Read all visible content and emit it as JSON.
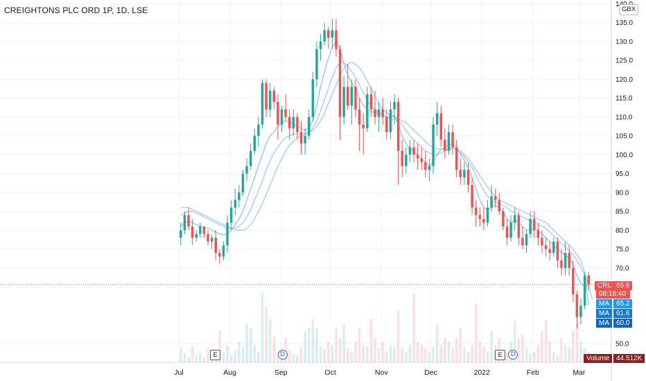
{
  "header": {
    "title": "CREIGHTONS PLC ORD 1P, 1D, LSE",
    "currency": "GBX"
  },
  "price_axis": {
    "ticks": [
      "140.0",
      "135.0",
      "130.0",
      "125.0",
      "120.0",
      "115.0",
      "110.0",
      "105.0",
      "100.0",
      "95.0",
      "90.0",
      "85.0",
      "80.0",
      "75.0",
      "70.0",
      "50.0"
    ]
  },
  "time_axis": {
    "labels": [
      "Jul",
      "Aug",
      "Sep",
      "Oct",
      "Nov",
      "Dec",
      "2022",
      "Feb",
      "Mar"
    ]
  },
  "legend_tags": {
    "symbol": "CRL",
    "last_price": "65.6",
    "countdown": "08:16:40",
    "ma_label": "MA",
    "ma1": "65.2",
    "ma2": "61.6",
    "ma3": "60.0",
    "volume_label": "Volume",
    "volume_value": "44.512K"
  },
  "events": [
    {
      "type": "E",
      "date": "2021-07-23"
    },
    {
      "type": "D",
      "date": "2021-09-02"
    },
    {
      "type": "E",
      "date": "2022-01-12"
    },
    {
      "type": "D",
      "date": "2022-01-20"
    }
  ],
  "colors": {
    "up": "#26a69a",
    "down": "#ef5350",
    "ma": "#8fc3e8",
    "price_line": "#ef5350",
    "ma_tag": "#2196f3"
  },
  "chart_data": {
    "type": "candlestick",
    "title": "CREIGHTONS PLC ORD 1P, 1D, LSE",
    "ylim": [
      45,
      141
    ],
    "x_range": [
      "2021-07-01",
      "2022-03-08"
    ],
    "last_price": 65.6,
    "series": [
      {
        "name": "CRL",
        "values": [
          [
            78,
            82,
            76,
            80
          ],
          [
            80,
            85,
            79,
            84
          ],
          [
            84,
            86,
            80,
            81
          ],
          [
            81,
            83,
            76,
            78
          ],
          [
            78,
            80,
            77,
            79
          ],
          [
            79,
            82,
            78,
            81
          ],
          [
            81,
            81,
            78,
            79
          ],
          [
            79,
            80,
            76,
            77
          ],
          [
            77,
            79,
            75,
            78
          ],
          [
            78,
            80,
            72,
            74
          ],
          [
            74,
            75,
            71,
            73
          ],
          [
            73,
            77,
            72,
            76
          ],
          [
            76,
            84,
            74,
            82
          ],
          [
            82,
            88,
            80,
            86
          ],
          [
            86,
            91,
            84,
            88
          ],
          [
            88,
            92,
            86,
            90
          ],
          [
            90,
            96,
            89,
            95
          ],
          [
            95,
            99,
            93,
            97
          ],
          [
            97,
            103,
            96,
            101
          ],
          [
            101,
            107,
            100,
            105
          ],
          [
            105,
            110,
            102,
            108
          ],
          [
            108,
            120,
            107,
            119
          ],
          [
            119,
            120,
            110,
            112
          ],
          [
            112,
            119,
            110,
            117
          ],
          [
            117,
            118,
            112,
            114
          ],
          [
            114,
            116,
            104,
            108
          ],
          [
            108,
            113,
            106,
            112
          ],
          [
            112,
            116,
            109,
            110
          ],
          [
            110,
            112,
            104,
            107
          ],
          [
            107,
            112,
            105,
            110
          ],
          [
            110,
            111,
            104,
            106
          ],
          [
            106,
            109,
            100,
            103
          ],
          [
            103,
            107,
            100,
            105
          ],
          [
            105,
            112,
            104,
            110
          ],
          [
            110,
            122,
            109,
            120
          ],
          [
            120,
            130,
            118,
            128
          ],
          [
            128,
            132,
            125,
            130
          ],
          [
            130,
            135,
            129,
            133
          ],
          [
            133,
            134,
            128,
            131
          ],
          [
            131,
            136,
            128,
            133
          ],
          [
            133,
            136,
            126,
            128
          ],
          [
            128,
            129,
            104,
            110
          ],
          [
            110,
            121,
            108,
            118
          ],
          [
            118,
            124,
            112,
            113
          ],
          [
            113,
            120,
            108,
            118
          ],
          [
            118,
            120,
            110,
            112
          ],
          [
            112,
            115,
            101,
            108
          ],
          [
            108,
            111,
            100,
            107
          ],
          [
            107,
            118,
            106,
            116
          ],
          [
            116,
            118,
            110,
            112
          ],
          [
            112,
            117,
            108,
            110
          ],
          [
            110,
            114,
            106,
            112
          ],
          [
            112,
            115,
            108,
            110
          ],
          [
            110,
            112,
            104,
            106
          ],
          [
            106,
            114,
            104,
            112
          ],
          [
            112,
            116,
            108,
            114
          ],
          [
            114,
            115,
            92,
            101
          ],
          [
            101,
            104,
            94,
            97
          ],
          [
            97,
            102,
            95,
            100
          ],
          [
            100,
            104,
            98,
            102
          ],
          [
            102,
            104,
            98,
            100
          ],
          [
            100,
            103,
            96,
            99
          ],
          [
            99,
            102,
            96,
            98
          ],
          [
            98,
            101,
            94,
            96
          ],
          [
            96,
            99,
            93,
            97
          ],
          [
            97,
            110,
            95,
            108
          ],
          [
            108,
            114,
            105,
            111
          ],
          [
            111,
            113,
            102,
            104
          ],
          [
            104,
            107,
            99,
            101
          ],
          [
            101,
            108,
            100,
            106
          ],
          [
            106,
            108,
            100,
            102
          ],
          [
            102,
            104,
            94,
            96
          ],
          [
            96,
            99,
            92,
            94
          ],
          [
            94,
            98,
            92,
            96
          ],
          [
            96,
            98,
            90,
            92
          ],
          [
            92,
            94,
            84,
            86
          ],
          [
            86,
            88,
            81,
            84
          ],
          [
            84,
            86,
            81,
            83
          ],
          [
            83,
            86,
            80,
            82
          ],
          [
            82,
            88,
            81,
            86
          ],
          [
            86,
            92,
            85,
            89
          ],
          [
            89,
            91,
            86,
            88
          ],
          [
            88,
            90,
            84,
            85
          ],
          [
            85,
            86,
            80,
            81
          ],
          [
            81,
            83,
            76,
            78
          ],
          [
            78,
            84,
            77,
            82
          ],
          [
            82,
            86,
            80,
            84
          ],
          [
            84,
            85,
            76,
            78
          ],
          [
            78,
            81,
            75,
            76
          ],
          [
            76,
            80,
            74,
            79
          ],
          [
            79,
            85,
            78,
            83
          ],
          [
            83,
            85,
            78,
            80
          ],
          [
            80,
            82,
            76,
            78
          ],
          [
            78,
            80,
            74,
            76
          ],
          [
            76,
            78,
            73,
            75
          ],
          [
            75,
            77,
            72,
            74
          ],
          [
            74,
            78,
            73,
            77
          ],
          [
            77,
            78,
            70,
            72
          ],
          [
            72,
            75,
            68,
            70
          ],
          [
            70,
            77,
            68,
            74
          ],
          [
            74,
            76,
            68,
            70
          ],
          [
            70,
            72,
            61,
            63
          ],
          [
            63,
            64,
            54,
            57
          ],
          [
            57,
            62,
            55,
            60
          ],
          [
            60,
            69,
            59,
            68
          ],
          [
            68,
            69,
            64,
            65.6
          ]
        ]
      },
      {
        "name": "MA",
        "values": [
          81,
          82,
          82.5,
          82,
          81.5,
          81,
          80.8,
          80.5,
          80,
          79.5,
          79,
          78.8,
          79,
          80,
          81.5,
          83,
          85,
          88,
          91,
          94,
          97,
          100,
          103,
          105,
          106,
          107.5,
          108.5,
          109,
          108.5,
          108,
          107.5,
          107,
          106.5,
          107,
          109,
          113,
          118,
          122,
          125.5,
          128.5,
          130,
          128,
          124,
          121,
          119,
          117.5,
          115,
          113,
          112,
          111.5,
          111,
          111,
          110.5,
          110,
          110,
          110.5,
          108,
          105,
          103,
          101.5,
          101,
          100,
          99,
          98,
          97,
          98,
          100,
          101.5,
          102,
          102.5,
          103,
          102,
          100,
          98.5,
          96.5,
          94,
          91,
          88,
          86,
          85.5,
          86,
          86.5,
          86,
          85,
          83,
          82,
          82.5,
          82,
          81,
          80,
          80,
          80.5,
          80,
          79,
          78,
          77,
          76,
          75,
          74,
          73.5,
          72.5,
          71,
          68,
          66,
          65,
          65.2
        ]
      },
      {
        "name": "MA",
        "values": [
          84,
          84.5,
          85,
          85,
          84.5,
          84,
          83.5,
          83,
          82.5,
          82,
          81.5,
          81,
          80.5,
          80.5,
          80.5,
          81,
          82,
          83.5,
          85.5,
          88,
          90.5,
          93,
          96,
          98.5,
          100.5,
          102,
          103.5,
          104.5,
          105,
          105.5,
          105.5,
          105.5,
          105.5,
          106,
          107,
          109,
          111.5,
          114.5,
          117.5,
          120.5,
          123,
          124.5,
          124.5,
          123.5,
          122,
          120.5,
          118.5,
          116.5,
          114.5,
          113,
          112,
          111,
          110.5,
          110,
          109.5,
          109.5,
          109,
          108,
          106.5,
          105,
          104,
          103,
          102,
          101,
          100.5,
          100,
          100,
          100.5,
          101,
          101.5,
          102,
          101.5,
          100.5,
          99.5,
          98,
          96.5,
          94.5,
          92.5,
          90.5,
          89,
          88,
          87.5,
          87,
          86.5,
          86,
          85,
          84.5,
          84,
          83.5,
          83,
          82.5,
          82,
          81.5,
          81,
          80.5,
          79.5,
          78.5,
          77.5,
          76.5,
          75.5,
          74.5,
          73.5,
          72,
          70,
          68,
          65.5,
          61.6
        ]
      },
      {
        "name": "MA",
        "values": [
          86,
          86,
          86,
          85.5,
          85,
          84.5,
          84,
          83.5,
          83,
          82.5,
          82,
          81.5,
          81,
          80.5,
          80,
          80,
          80,
          80.5,
          81.5,
          83,
          85,
          87,
          89.5,
          92,
          94.5,
          97,
          99,
          101,
          102.5,
          103.5,
          104.5,
          105,
          105.5,
          106,
          106.5,
          107.5,
          109,
          111,
          113.5,
          116,
          118.5,
          121,
          123,
          124,
          124.5,
          124,
          123,
          121.5,
          119.5,
          117.5,
          115.5,
          113.5,
          112,
          111,
          110.5,
          110,
          109.5,
          109,
          108.5,
          107.5,
          106.5,
          105.5,
          104.5,
          103.5,
          102.5,
          102,
          101.5,
          101.5,
          101.5,
          101.5,
          101.5,
          101.5,
          101,
          100,
          99,
          97.5,
          96,
          94.5,
          93,
          91.5,
          90,
          89,
          88,
          87.5,
          87,
          86.5,
          86,
          85.5,
          85,
          84.5,
          84,
          83.5,
          83,
          82.5,
          82,
          81,
          80,
          79,
          78,
          77,
          76,
          75,
          73.5,
          72,
          68.5,
          60
        ]
      },
      {
        "name": "Volume",
        "values": [
          8,
          5,
          3,
          9,
          4,
          6,
          3,
          8,
          5,
          6,
          18,
          6,
          10,
          4,
          7,
          12,
          9,
          22,
          20,
          10,
          6,
          40,
          32,
          25,
          15,
          6,
          8,
          14,
          7,
          5,
          4,
          9,
          18,
          20,
          25,
          20,
          9,
          8,
          12,
          10,
          20,
          14,
          22,
          8,
          6,
          12,
          20,
          10,
          9,
          25,
          14,
          8,
          12,
          6,
          10,
          9,
          30,
          8,
          6,
          10,
          40,
          12,
          10,
          8,
          6,
          9,
          22,
          10,
          14,
          12,
          8,
          14,
          20,
          9,
          6,
          10,
          34,
          12,
          9,
          6,
          18,
          10,
          14,
          8,
          6,
          12,
          24,
          14,
          16,
          8,
          5,
          6,
          10,
          18,
          24,
          12,
          6,
          4,
          14,
          10,
          9,
          18,
          22,
          12,
          8,
          6
        ]
      }
    ],
    "ma_last": [
      65.2,
      61.6,
      60.0
    ],
    "volume_last": "44.512K"
  }
}
